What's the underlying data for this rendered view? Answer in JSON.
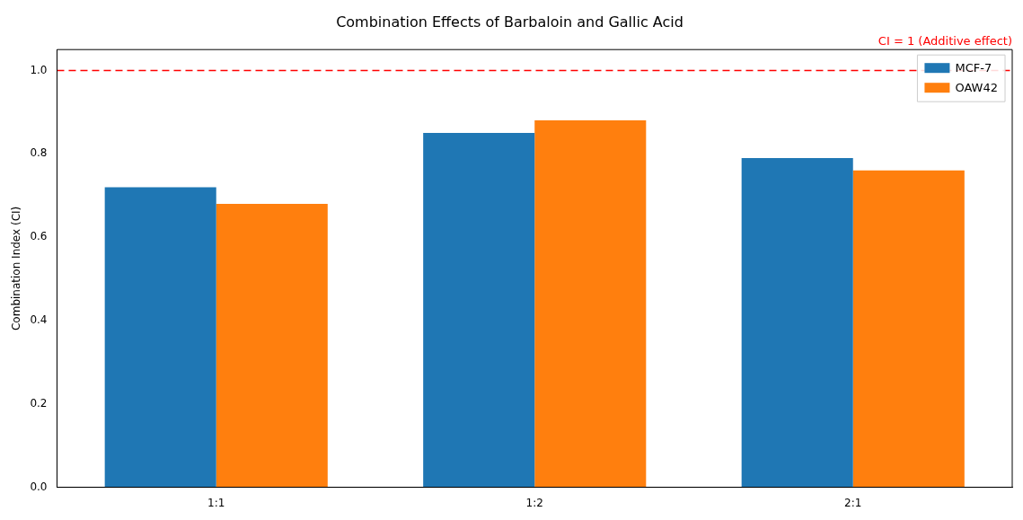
{
  "chart_data": {
    "type": "bar",
    "title": "Combination Effects of Barbaloin and Gallic Acid",
    "ylabel": "Combination Index (CI)",
    "categories": [
      "1:1",
      "1:2",
      "2:1"
    ],
    "series": [
      {
        "name": "MCF-7",
        "color": "#1f77b4",
        "values": [
          0.72,
          0.85,
          0.79
        ]
      },
      {
        "name": "OAW42",
        "color": "#ff7f0e",
        "values": [
          0.68,
          0.88,
          0.76
        ]
      }
    ],
    "ylim": [
      0,
      1.05
    ],
    "yticks": [
      {
        "value": 0,
        "label": "0.0"
      },
      0.2,
      0.4,
      0.6,
      0.8,
      {
        "value": 1,
        "label": "1.0"
      }
    ],
    "ref_lines": [
      {
        "axis": "y",
        "value": 1.0,
        "label": "CI = 1 (Additive effect)",
        "color": "#ff0000",
        "line_style": "dashed"
      }
    ],
    "legend": "top right",
    "grid": false
  }
}
